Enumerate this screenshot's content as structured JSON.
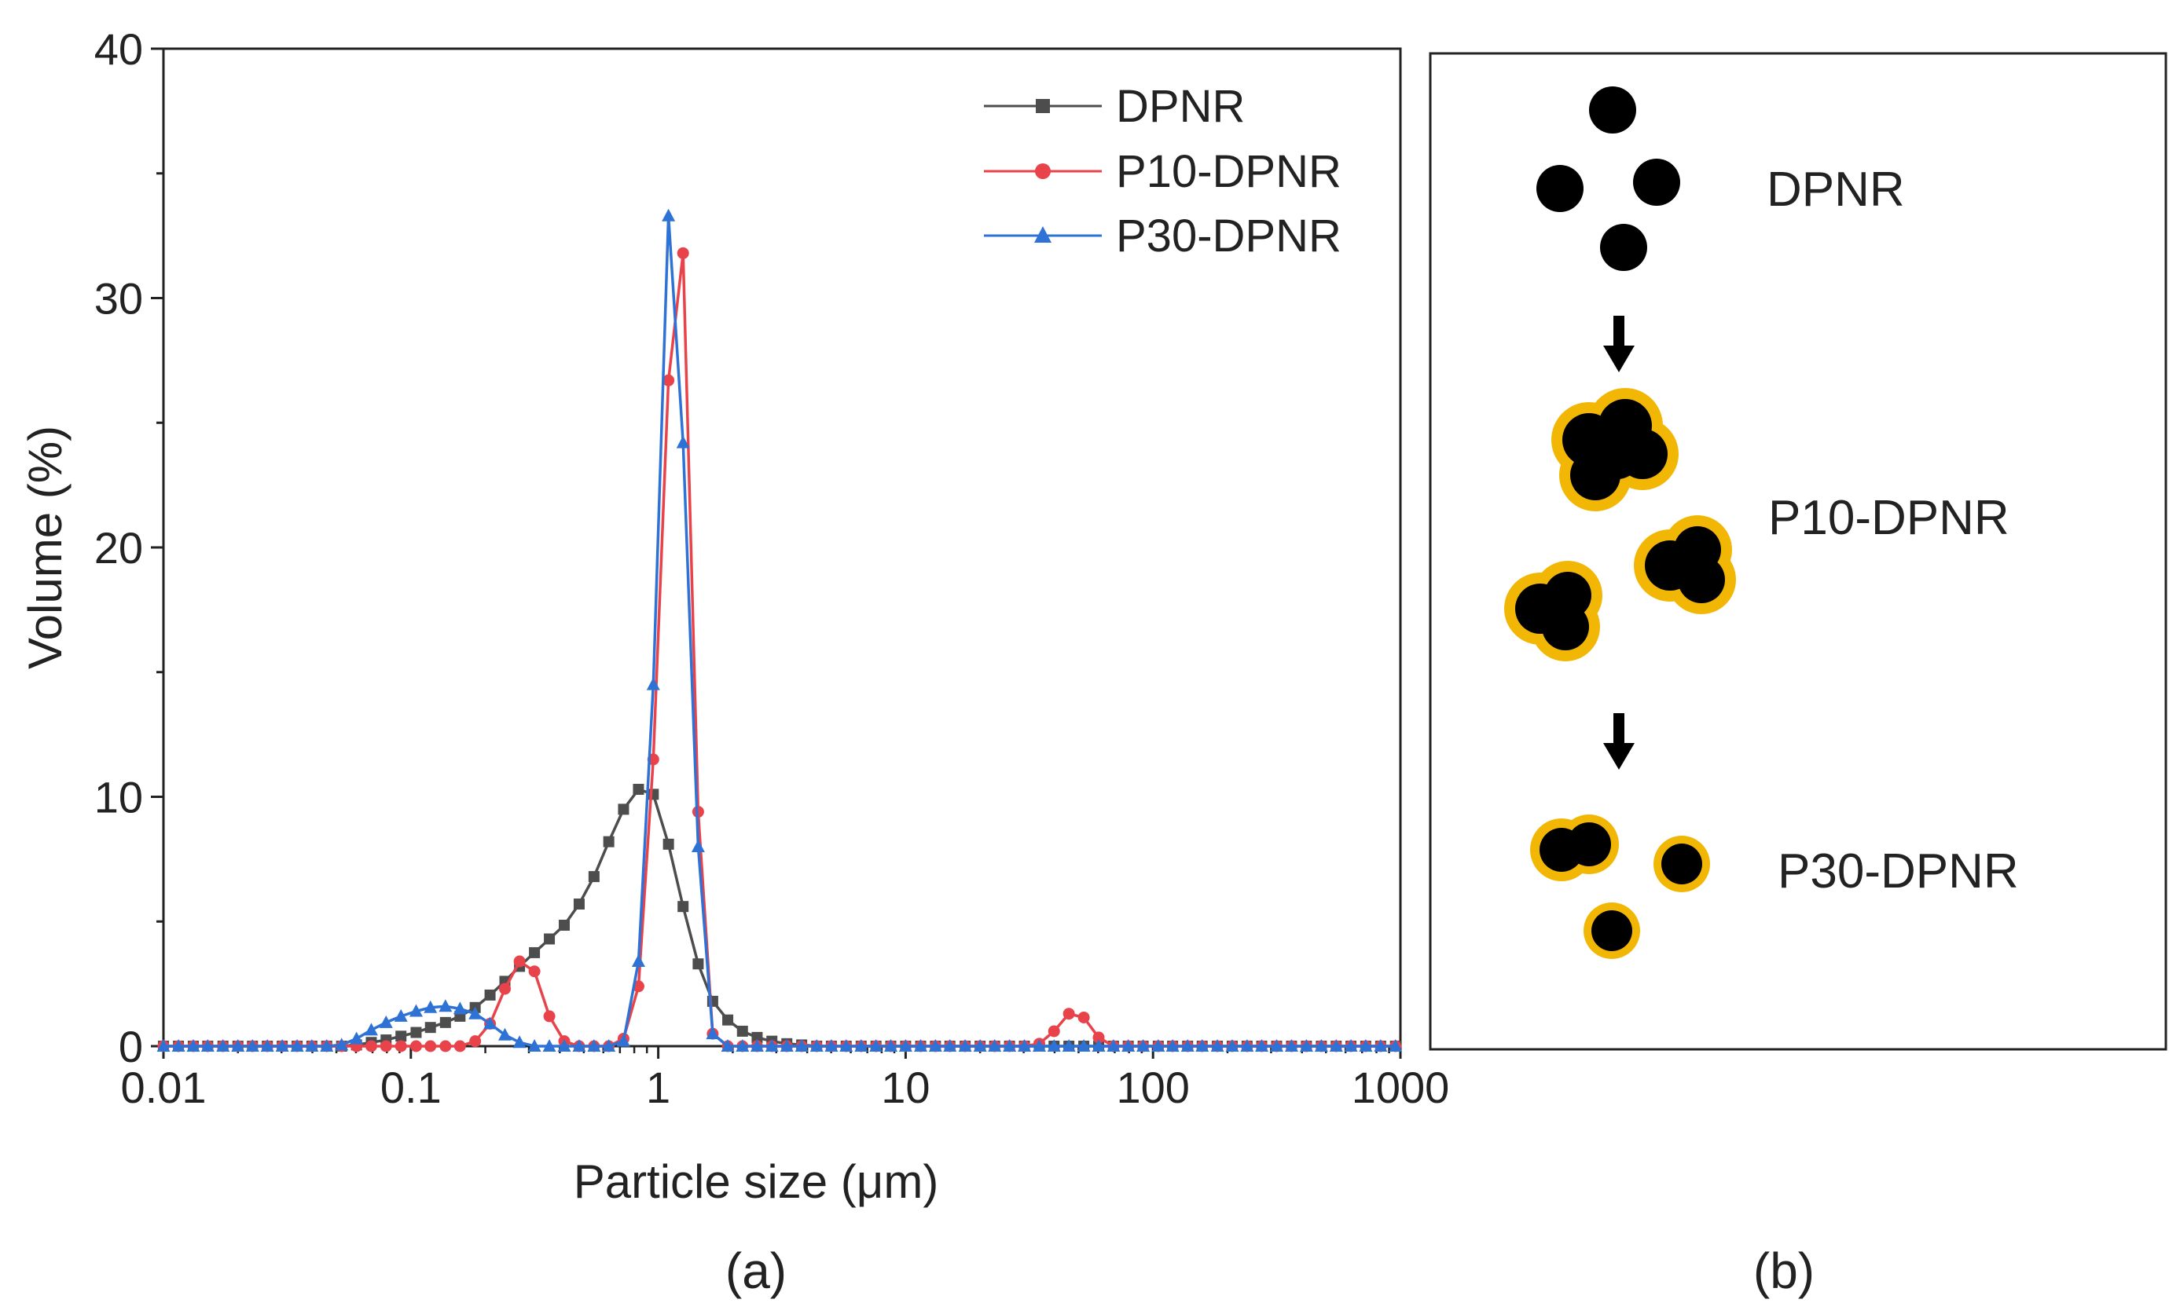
{
  "figure": {
    "panel_a_caption": "(a)",
    "panel_b_caption": "(b)"
  },
  "chart_data": {
    "type": "line",
    "xscale": "log",
    "xlabel": "Particle size (μm)",
    "ylabel": "Volume (%)",
    "xlim": [
      0.01,
      1000
    ],
    "ylim": [
      0,
      40
    ],
    "xticks": [
      0.01,
      0.1,
      1,
      10,
      100,
      1000
    ],
    "xticklabels": [
      "0.01",
      "0.1",
      "1",
      "10",
      "100",
      "1000"
    ],
    "yticks": [
      0,
      10,
      20,
      30,
      40
    ],
    "yticklabels": [
      "0",
      "10",
      "20",
      "30",
      "40"
    ],
    "legend_position": "top-right",
    "series": [
      {
        "name": "DPNR",
        "color": "#4d4d4d",
        "marker": "square",
        "x": [
          0.01,
          0.0115,
          0.0132,
          0.0151,
          0.0174,
          0.02,
          0.0229,
          0.0263,
          0.0302,
          0.0347,
          0.0398,
          0.0457,
          0.0525,
          0.0603,
          0.0692,
          0.0794,
          0.0912,
          0.105,
          0.12,
          0.138,
          0.158,
          0.182,
          0.209,
          0.24,
          0.275,
          0.316,
          0.363,
          0.417,
          0.479,
          0.55,
          0.631,
          0.724,
          0.832,
          0.955,
          1.1,
          1.26,
          1.45,
          1.66,
          1.91,
          2.19,
          2.51,
          2.88,
          3.31,
          3.8,
          4.37,
          5.01,
          5.75,
          6.61,
          7.59,
          8.71,
          10,
          11.5,
          13.2,
          15.1,
          17.4,
          20,
          22.9,
          26.3,
          30.2,
          34.7,
          39.8,
          45.7,
          52.5,
          60.3,
          69.2,
          79.4,
          91.2,
          105,
          120,
          138,
          158,
          182,
          209,
          240,
          275,
          316,
          363,
          417,
          479,
          550,
          631,
          724,
          832,
          955
        ],
        "y": [
          0,
          0,
          0,
          0,
          0,
          0,
          0,
          0,
          0,
          0,
          0,
          0,
          0,
          0.05,
          0.15,
          0.25,
          0.4,
          0.55,
          0.75,
          0.95,
          1.2,
          1.55,
          2.05,
          2.6,
          3.2,
          3.75,
          4.3,
          4.85,
          5.7,
          6.8,
          8.2,
          9.5,
          10.3,
          10.1,
          8.1,
          5.6,
          3.3,
          1.8,
          1.05,
          0.6,
          0.35,
          0.2,
          0.1,
          0.05,
          0,
          0,
          0,
          0,
          0,
          0,
          0,
          0,
          0,
          0,
          0,
          0,
          0,
          0,
          0,
          0,
          0,
          0,
          0,
          0,
          0,
          0,
          0,
          0,
          0,
          0,
          0,
          0,
          0,
          0,
          0,
          0,
          0,
          0,
          0,
          0,
          0,
          0,
          0,
          0
        ]
      },
      {
        "name": "P10-DPNR",
        "color": "#e8434a",
        "marker": "circle",
        "x": [
          0.01,
          0.0115,
          0.0132,
          0.0151,
          0.0174,
          0.02,
          0.0229,
          0.0263,
          0.0302,
          0.0347,
          0.0398,
          0.0457,
          0.0525,
          0.0603,
          0.0692,
          0.0794,
          0.0912,
          0.105,
          0.12,
          0.138,
          0.158,
          0.182,
          0.209,
          0.24,
          0.275,
          0.316,
          0.363,
          0.417,
          0.479,
          0.55,
          0.631,
          0.724,
          0.832,
          0.955,
          1.1,
          1.26,
          1.45,
          1.66,
          1.91,
          2.19,
          2.51,
          2.88,
          3.31,
          3.8,
          4.37,
          5.01,
          5.75,
          6.61,
          7.59,
          8.71,
          10,
          11.5,
          13.2,
          15.1,
          17.4,
          20,
          22.9,
          26.3,
          30.2,
          34.7,
          39.8,
          45.7,
          52.5,
          60.3,
          69.2,
          79.4,
          91.2,
          105,
          120,
          138,
          158,
          182,
          209,
          240,
          275,
          316,
          363,
          417,
          479,
          550,
          631,
          724,
          832,
          955
        ],
        "y": [
          0,
          0,
          0,
          0,
          0,
          0,
          0,
          0,
          0,
          0,
          0,
          0,
          0,
          0,
          0,
          0,
          0,
          0,
          0,
          0,
          0,
          0.2,
          0.9,
          2.3,
          3.4,
          3,
          1.2,
          0.2,
          0,
          0,
          0,
          0.3,
          2.4,
          11.5,
          26.7,
          31.8,
          9.4,
          0.5,
          0,
          0,
          0,
          0,
          0,
          0,
          0,
          0,
          0,
          0,
          0,
          0,
          0,
          0,
          0,
          0,
          0,
          0,
          0,
          0,
          0,
          0.1,
          0.6,
          1.3,
          1.15,
          0.35,
          0,
          0,
          0,
          0,
          0,
          0,
          0,
          0,
          0,
          0,
          0,
          0,
          0,
          0,
          0,
          0,
          0,
          0,
          0,
          0
        ]
      },
      {
        "name": "P30-DPNR",
        "color": "#2f72d6",
        "marker": "triangle",
        "x": [
          0.01,
          0.0115,
          0.0132,
          0.0151,
          0.0174,
          0.02,
          0.0229,
          0.0263,
          0.0302,
          0.0347,
          0.0398,
          0.0457,
          0.0525,
          0.0603,
          0.0692,
          0.0794,
          0.0912,
          0.105,
          0.12,
          0.138,
          0.158,
          0.182,
          0.209,
          0.24,
          0.275,
          0.316,
          0.363,
          0.417,
          0.479,
          0.55,
          0.631,
          0.724,
          0.832,
          0.955,
          1.1,
          1.26,
          1.45,
          1.66,
          1.91,
          2.19,
          2.51,
          2.88,
          3.31,
          3.8,
          4.37,
          5.01,
          5.75,
          6.61,
          7.59,
          8.71,
          10,
          11.5,
          13.2,
          15.1,
          17.4,
          20,
          22.9,
          26.3,
          30.2,
          34.7,
          39.8,
          45.7,
          52.5,
          60.3,
          69.2,
          79.4,
          91.2,
          105,
          120,
          138,
          158,
          182,
          209,
          240,
          275,
          316,
          363,
          417,
          479,
          550,
          631,
          724,
          832,
          955
        ],
        "y": [
          0,
          0,
          0,
          0,
          0,
          0,
          0,
          0,
          0,
          0,
          0,
          0,
          0.05,
          0.3,
          0.65,
          0.95,
          1.2,
          1.4,
          1.55,
          1.6,
          1.5,
          1.3,
          0.9,
          0.45,
          0.15,
          0,
          0,
          0,
          0,
          0,
          0,
          0.2,
          3.4,
          14.5,
          33.3,
          24.2,
          8,
          0.5,
          0,
          0,
          0,
          0,
          0,
          0,
          0,
          0,
          0,
          0,
          0,
          0,
          0,
          0,
          0,
          0,
          0,
          0,
          0,
          0,
          0,
          0,
          0,
          0,
          0,
          0,
          0,
          0,
          0,
          0,
          0,
          0,
          0,
          0,
          0,
          0,
          0,
          0,
          0,
          0,
          0,
          0,
          0,
          0,
          0,
          0
        ]
      }
    ]
  },
  "schematic": {
    "labels": [
      "DPNR",
      "P10-DPNR",
      "P30-DPNR"
    ],
    "particle_color": "#000000",
    "shell_color": "#f2b705",
    "arrow": "down-arrow"
  }
}
